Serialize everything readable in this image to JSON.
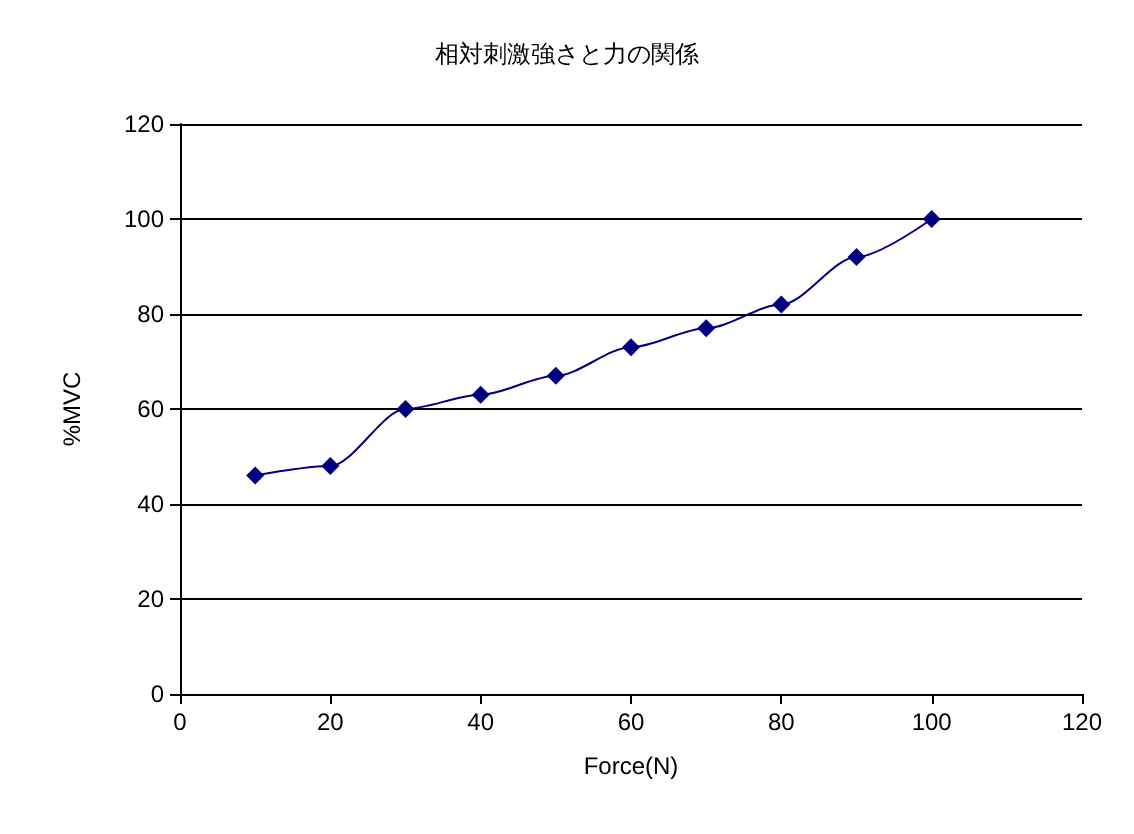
{
  "chart_data": {
    "type": "line",
    "title": "相対刺激強さと力の関係",
    "xlabel": "Force(N)",
    "ylabel": "%MVC",
    "x": [
      10,
      20,
      30,
      40,
      50,
      60,
      70,
      80,
      90,
      100
    ],
    "series": [
      {
        "color": "#000080",
        "values": [
          46,
          48,
          60,
          63,
          67,
          73,
          77,
          82,
          92,
          100
        ]
      }
    ],
    "xlim": [
      0,
      120
    ],
    "xticks": [
      0,
      20,
      40,
      60,
      80,
      100,
      120
    ],
    "ylim": [
      0,
      120
    ],
    "yticks": [
      0,
      20,
      40,
      60,
      80,
      100,
      120
    ],
    "grid": "y",
    "marker": "diamond",
    "line_style": "solid"
  }
}
